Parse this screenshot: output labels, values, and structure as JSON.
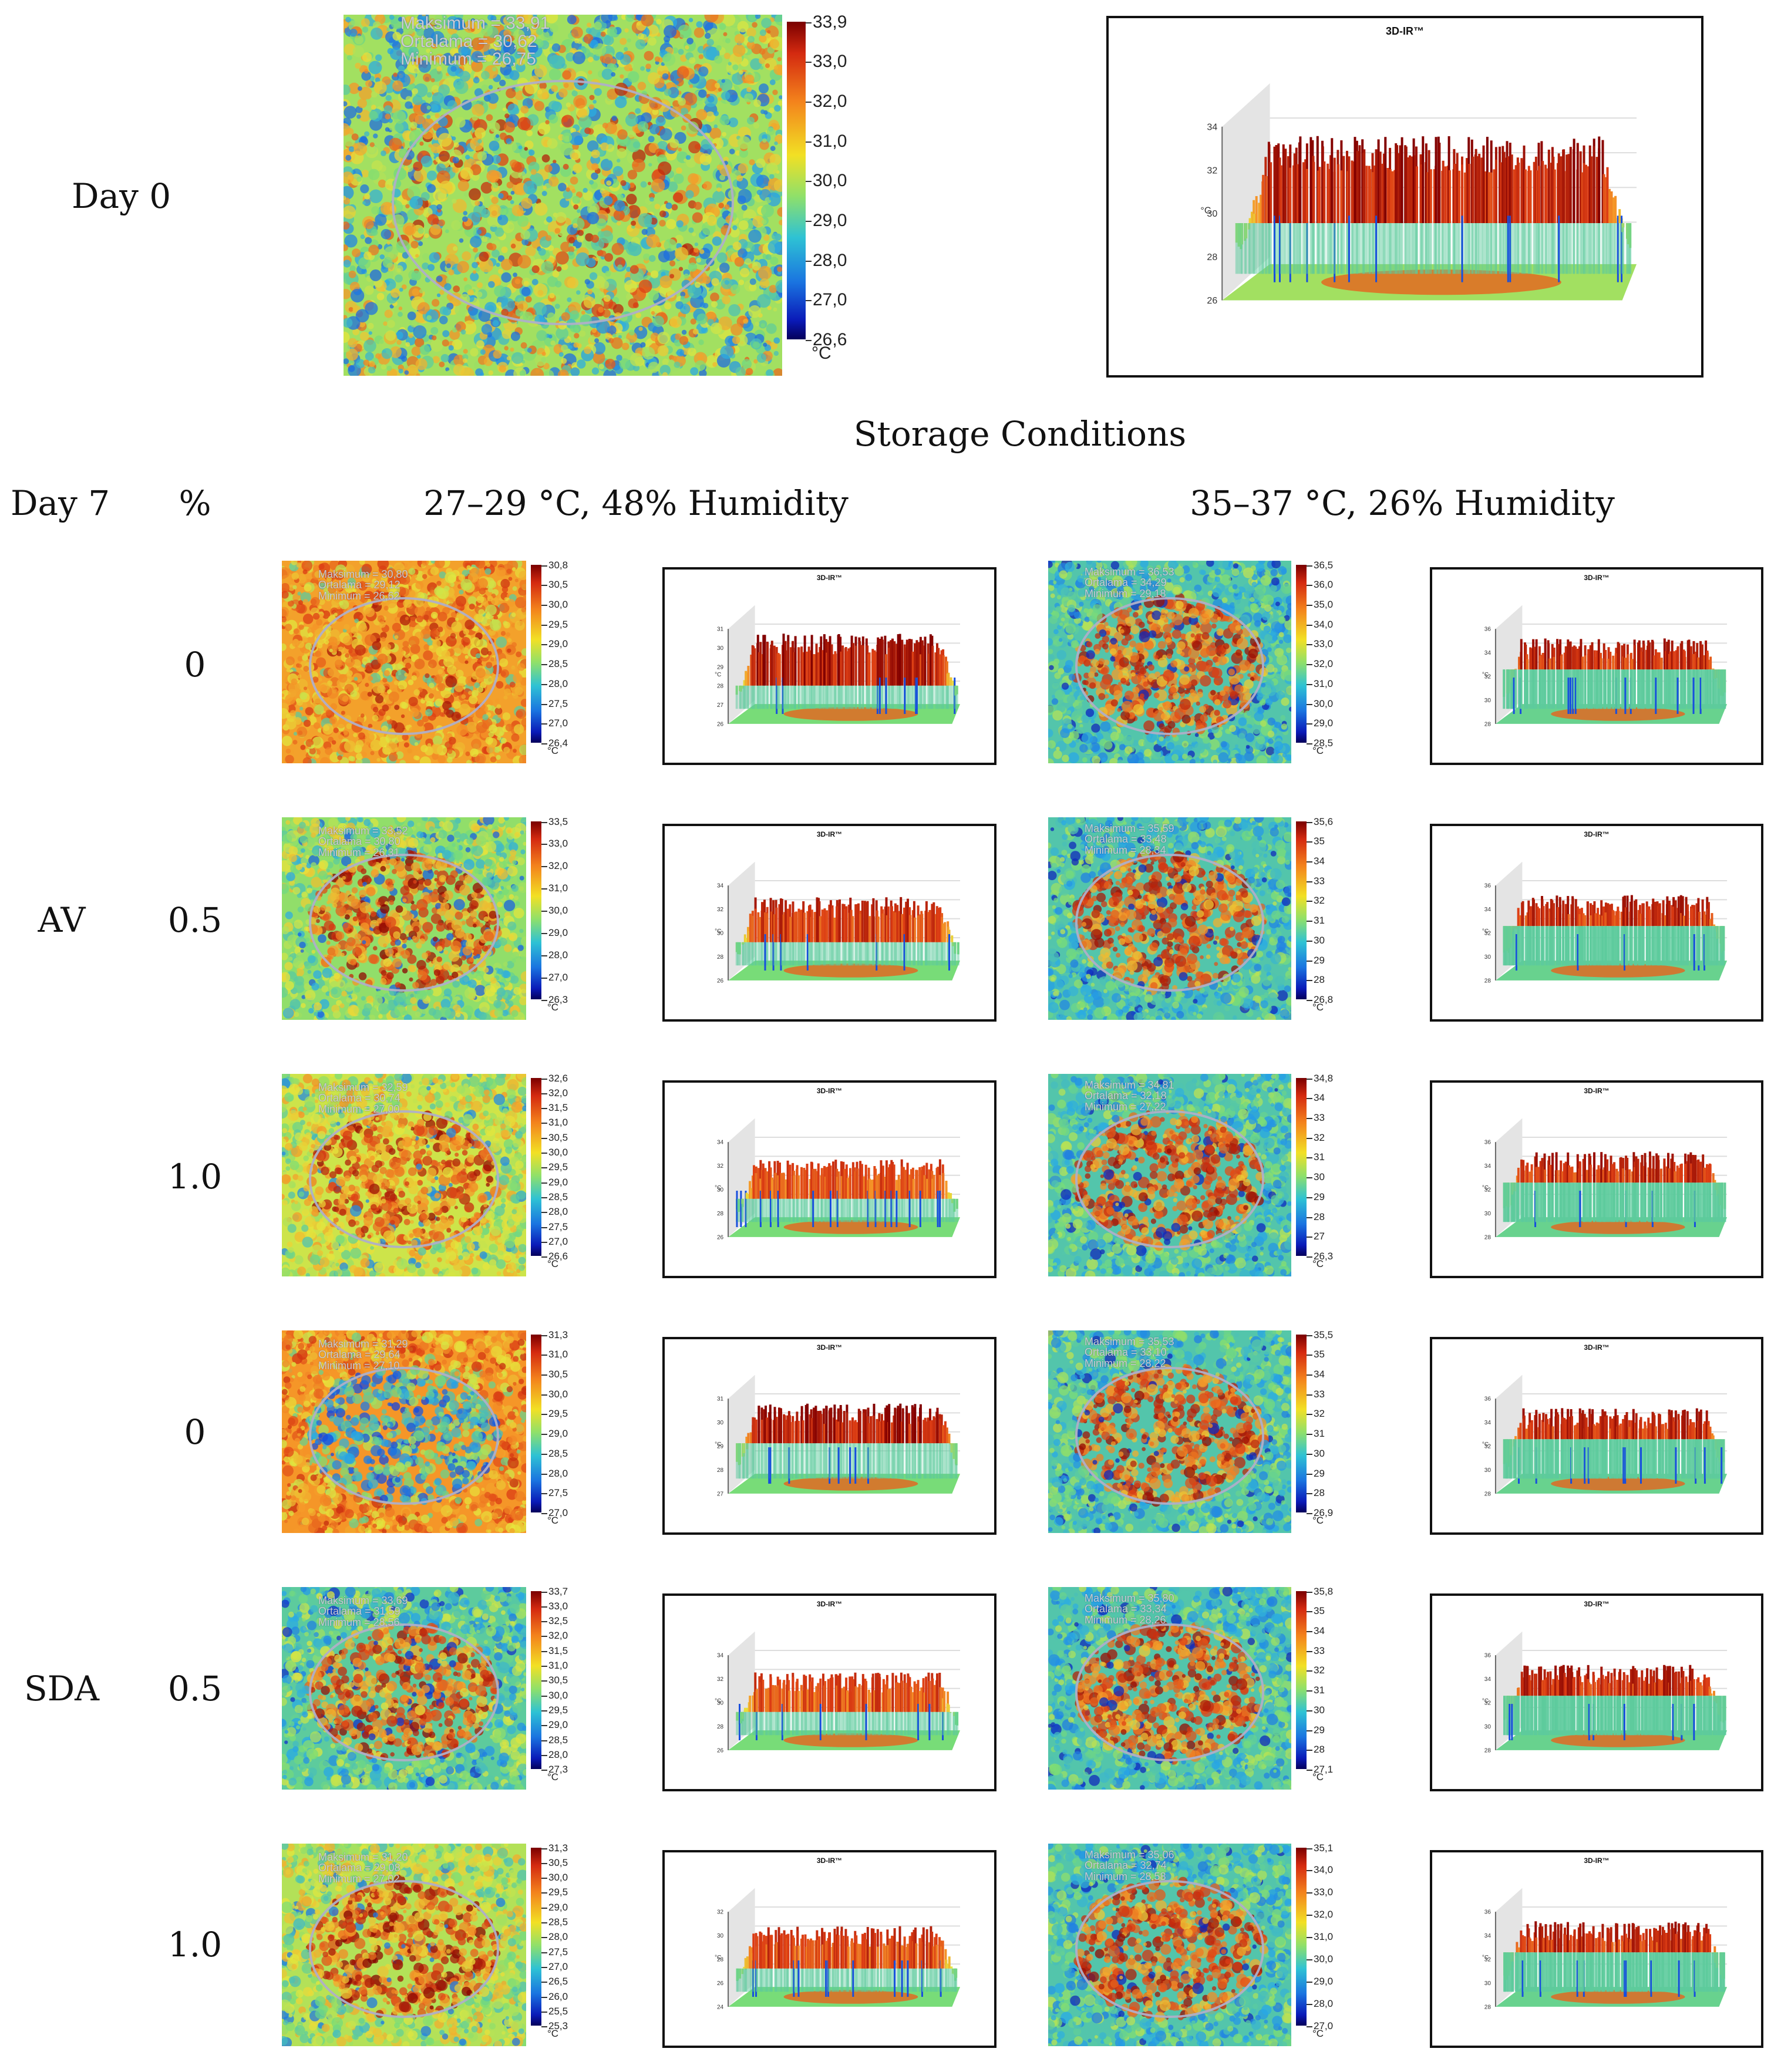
{
  "header": {
    "day0_label": "Day 0",
    "storage_title": "Storage Conditions",
    "day7_label": "Day 7",
    "percent_label": "%",
    "condition_1": "27–29 °C, 48% Humidity",
    "condition_2": "35–37 °C, 26% Humidity"
  },
  "groups": {
    "av": "AV",
    "sda": "SDA"
  },
  "plot_title": "3D-IR™",
  "axis_unit": "°C",
  "day0": {
    "stats": {
      "max": "Maksimum = 33,91",
      "avg": "Ortalama = 30,62",
      "min": "Minimum = 26,75"
    },
    "scale_ticks": [
      "33,9",
      "33,0",
      "32,0",
      "31,0",
      "30,0",
      "29,0",
      "28,0",
      "27,0",
      "26,6"
    ],
    "z_ticks": [
      "34",
      "32",
      "30",
      "28",
      "26"
    ]
  },
  "rows": [
    {
      "group": "",
      "percent": "0",
      "c1": {
        "stats": {
          "max": "Maksimum = 30,80",
          "avg": "Ortalama = 29,12",
          "min": "Minimum = 26,62"
        },
        "scale_ticks": [
          "30,8",
          "30,5",
          "30,0",
          "29,5",
          "29,0",
          "28,5",
          "28,0",
          "27,5",
          "27,0",
          "26,4"
        ],
        "z_ticks": [
          "31",
          "30",
          "29",
          "28",
          "27",
          "26"
        ]
      },
      "c2": {
        "stats": {
          "max": "Maksimum = 36,53",
          "avg": "Ortalama = 34,29",
          "min": "Minimum = 29,18"
        },
        "scale_ticks": [
          "36,5",
          "36,0",
          "35,0",
          "34,0",
          "33,0",
          "32,0",
          "31,0",
          "30,0",
          "29,0",
          "28,5"
        ],
        "z_ticks": [
          "36",
          "34",
          "32",
          "30",
          "28"
        ]
      }
    },
    {
      "group": "AV",
      "percent": "0.5",
      "c1": {
        "stats": {
          "max": "Maksimum = 33,52",
          "avg": "Ortalama = 30,80",
          "min": "Minimum = 26,31"
        },
        "scale_ticks": [
          "33,5",
          "33,0",
          "32,0",
          "31,0",
          "30,0",
          "29,0",
          "28,0",
          "27,0",
          "26,3"
        ],
        "z_ticks": [
          "34",
          "32",
          "30",
          "28",
          "26"
        ]
      },
      "c2": {
        "stats": {
          "max": "Maksimum = 35,59",
          "avg": "Ortalama = 33,48",
          "min": "Minimum = 28,34"
        },
        "scale_ticks": [
          "35,6",
          "35",
          "34",
          "33",
          "32",
          "31",
          "30",
          "29",
          "28",
          "26,8"
        ],
        "z_ticks": [
          "36",
          "34",
          "32",
          "30",
          "28"
        ]
      }
    },
    {
      "group": "",
      "percent": "1.0",
      "c1": {
        "stats": {
          "max": "Maksimum = 32,59",
          "avg": "Ortalama = 30,74",
          "min": "Minimum = 27,00"
        },
        "scale_ticks": [
          "32,6",
          "32,0",
          "31,5",
          "31,0",
          "30,5",
          "30,0",
          "29,5",
          "29,0",
          "28,5",
          "28,0",
          "27,5",
          "27,0",
          "26,6"
        ],
        "z_ticks": [
          "34",
          "32",
          "30",
          "28",
          "26"
        ]
      },
      "c2": {
        "stats": {
          "max": "Maksimum = 34,81",
          "avg": "Ortalama = 32,18",
          "min": "Minimum = 27,22"
        },
        "scale_ticks": [
          "34,8",
          "34",
          "33",
          "32",
          "31",
          "30",
          "29",
          "28",
          "27",
          "26,3"
        ],
        "z_ticks": [
          "36",
          "34",
          "32",
          "30",
          "28"
        ]
      }
    },
    {
      "group": "",
      "percent": "0",
      "c1": {
        "stats": {
          "max": "Maksimum = 31,29",
          "avg": "Ortalama = 29,64",
          "min": "Minimum = 27,10"
        },
        "scale_ticks": [
          "31,3",
          "31,0",
          "30,5",
          "30,0",
          "29,5",
          "29,0",
          "28,5",
          "28,0",
          "27,5",
          "27,0"
        ],
        "z_ticks": [
          "31",
          "30",
          "29",
          "28",
          "27"
        ]
      },
      "c2": {
        "stats": {
          "max": "Maksimum = 35,53",
          "avg": "Ortalama = 33,10",
          "min": "Minimum = 28,22"
        },
        "scale_ticks": [
          "35,5",
          "35",
          "34",
          "33",
          "32",
          "31",
          "30",
          "29",
          "28",
          "26,9"
        ],
        "z_ticks": [
          "36",
          "34",
          "32",
          "30",
          "28"
        ]
      }
    },
    {
      "group": "SDA",
      "percent": "0.5",
      "c1": {
        "stats": {
          "max": "Maksimum = 33,69",
          "avg": "Ortalama = 31,59",
          "min": "Minimum = 28,56"
        },
        "scale_ticks": [
          "33,7",
          "33,0",
          "32,5",
          "32,0",
          "31,5",
          "31,0",
          "30,5",
          "30,0",
          "29,5",
          "29,0",
          "28,5",
          "28,0",
          "27,3"
        ],
        "z_ticks": [
          "34",
          "32",
          "30",
          "28",
          "26"
        ]
      },
      "c2": {
        "stats": {
          "max": "Maksimum = 35,80",
          "avg": "Ortalama = 33,34",
          "min": "Minimum = 28,26"
        },
        "scale_ticks": [
          "35,8",
          "35",
          "34",
          "33",
          "32",
          "31",
          "30",
          "29",
          "28",
          "27,1"
        ],
        "z_ticks": [
          "36",
          "34",
          "32",
          "30",
          "28"
        ]
      }
    },
    {
      "group": "",
      "percent": "1.0",
      "c1": {
        "stats": {
          "max": "Maksimum = 31,20",
          "avg": "Ortalama = 29,08",
          "min": "Minimum = 27,02"
        },
        "scale_ticks": [
          "31,3",
          "30,5",
          "30,0",
          "29,5",
          "29,0",
          "28,5",
          "28,0",
          "27,5",
          "27,0",
          "26,5",
          "26,0",
          "25,5",
          "25,3"
        ],
        "z_ticks": [
          "32",
          "30",
          "28",
          "26",
          "24"
        ]
      },
      "c2": {
        "stats": {
          "max": "Maksimum = 35,06",
          "avg": "Ortalama = 32,74",
          "min": "Minimum = 28,58"
        },
        "scale_ticks": [
          "35,1",
          "34,0",
          "33,0",
          "32,0",
          "31,0",
          "30,0",
          "29,0",
          "28,0",
          "27,0"
        ],
        "z_ticks": [
          "36",
          "34",
          "32",
          "30",
          "28"
        ]
      }
    }
  ]
}
